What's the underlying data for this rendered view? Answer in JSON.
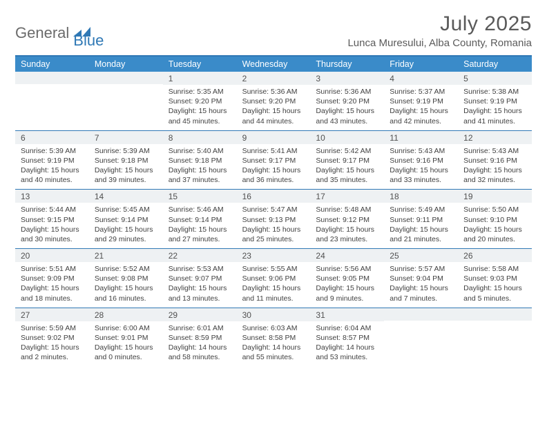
{
  "brand": {
    "general": "General",
    "blue": "Blue"
  },
  "title": "July 2025",
  "location": "Lunca Muresului, Alba County, Romania",
  "colors": {
    "header_bg": "#3a8bc9",
    "border": "#2f78b5",
    "daynum_bg": "#eef1f3",
    "text": "#404040"
  },
  "day_names": [
    "Sunday",
    "Monday",
    "Tuesday",
    "Wednesday",
    "Thursday",
    "Friday",
    "Saturday"
  ],
  "weeks": [
    [
      {
        "n": "",
        "sr": "",
        "ss": "",
        "dl": ""
      },
      {
        "n": "",
        "sr": "",
        "ss": "",
        "dl": ""
      },
      {
        "n": "1",
        "sr": "Sunrise: 5:35 AM",
        "ss": "Sunset: 9:20 PM",
        "dl": "Daylight: 15 hours and 45 minutes."
      },
      {
        "n": "2",
        "sr": "Sunrise: 5:36 AM",
        "ss": "Sunset: 9:20 PM",
        "dl": "Daylight: 15 hours and 44 minutes."
      },
      {
        "n": "3",
        "sr": "Sunrise: 5:36 AM",
        "ss": "Sunset: 9:20 PM",
        "dl": "Daylight: 15 hours and 43 minutes."
      },
      {
        "n": "4",
        "sr": "Sunrise: 5:37 AM",
        "ss": "Sunset: 9:19 PM",
        "dl": "Daylight: 15 hours and 42 minutes."
      },
      {
        "n": "5",
        "sr": "Sunrise: 5:38 AM",
        "ss": "Sunset: 9:19 PM",
        "dl": "Daylight: 15 hours and 41 minutes."
      }
    ],
    [
      {
        "n": "6",
        "sr": "Sunrise: 5:39 AM",
        "ss": "Sunset: 9:19 PM",
        "dl": "Daylight: 15 hours and 40 minutes."
      },
      {
        "n": "7",
        "sr": "Sunrise: 5:39 AM",
        "ss": "Sunset: 9:18 PM",
        "dl": "Daylight: 15 hours and 39 minutes."
      },
      {
        "n": "8",
        "sr": "Sunrise: 5:40 AM",
        "ss": "Sunset: 9:18 PM",
        "dl": "Daylight: 15 hours and 37 minutes."
      },
      {
        "n": "9",
        "sr": "Sunrise: 5:41 AM",
        "ss": "Sunset: 9:17 PM",
        "dl": "Daylight: 15 hours and 36 minutes."
      },
      {
        "n": "10",
        "sr": "Sunrise: 5:42 AM",
        "ss": "Sunset: 9:17 PM",
        "dl": "Daylight: 15 hours and 35 minutes."
      },
      {
        "n": "11",
        "sr": "Sunrise: 5:43 AM",
        "ss": "Sunset: 9:16 PM",
        "dl": "Daylight: 15 hours and 33 minutes."
      },
      {
        "n": "12",
        "sr": "Sunrise: 5:43 AM",
        "ss": "Sunset: 9:16 PM",
        "dl": "Daylight: 15 hours and 32 minutes."
      }
    ],
    [
      {
        "n": "13",
        "sr": "Sunrise: 5:44 AM",
        "ss": "Sunset: 9:15 PM",
        "dl": "Daylight: 15 hours and 30 minutes."
      },
      {
        "n": "14",
        "sr": "Sunrise: 5:45 AM",
        "ss": "Sunset: 9:14 PM",
        "dl": "Daylight: 15 hours and 29 minutes."
      },
      {
        "n": "15",
        "sr": "Sunrise: 5:46 AM",
        "ss": "Sunset: 9:14 PM",
        "dl": "Daylight: 15 hours and 27 minutes."
      },
      {
        "n": "16",
        "sr": "Sunrise: 5:47 AM",
        "ss": "Sunset: 9:13 PM",
        "dl": "Daylight: 15 hours and 25 minutes."
      },
      {
        "n": "17",
        "sr": "Sunrise: 5:48 AM",
        "ss": "Sunset: 9:12 PM",
        "dl": "Daylight: 15 hours and 23 minutes."
      },
      {
        "n": "18",
        "sr": "Sunrise: 5:49 AM",
        "ss": "Sunset: 9:11 PM",
        "dl": "Daylight: 15 hours and 21 minutes."
      },
      {
        "n": "19",
        "sr": "Sunrise: 5:50 AM",
        "ss": "Sunset: 9:10 PM",
        "dl": "Daylight: 15 hours and 20 minutes."
      }
    ],
    [
      {
        "n": "20",
        "sr": "Sunrise: 5:51 AM",
        "ss": "Sunset: 9:09 PM",
        "dl": "Daylight: 15 hours and 18 minutes."
      },
      {
        "n": "21",
        "sr": "Sunrise: 5:52 AM",
        "ss": "Sunset: 9:08 PM",
        "dl": "Daylight: 15 hours and 16 minutes."
      },
      {
        "n": "22",
        "sr": "Sunrise: 5:53 AM",
        "ss": "Sunset: 9:07 PM",
        "dl": "Daylight: 15 hours and 13 minutes."
      },
      {
        "n": "23",
        "sr": "Sunrise: 5:55 AM",
        "ss": "Sunset: 9:06 PM",
        "dl": "Daylight: 15 hours and 11 minutes."
      },
      {
        "n": "24",
        "sr": "Sunrise: 5:56 AM",
        "ss": "Sunset: 9:05 PM",
        "dl": "Daylight: 15 hours and 9 minutes."
      },
      {
        "n": "25",
        "sr": "Sunrise: 5:57 AM",
        "ss": "Sunset: 9:04 PM",
        "dl": "Daylight: 15 hours and 7 minutes."
      },
      {
        "n": "26",
        "sr": "Sunrise: 5:58 AM",
        "ss": "Sunset: 9:03 PM",
        "dl": "Daylight: 15 hours and 5 minutes."
      }
    ],
    [
      {
        "n": "27",
        "sr": "Sunrise: 5:59 AM",
        "ss": "Sunset: 9:02 PM",
        "dl": "Daylight: 15 hours and 2 minutes."
      },
      {
        "n": "28",
        "sr": "Sunrise: 6:00 AM",
        "ss": "Sunset: 9:01 PM",
        "dl": "Daylight: 15 hours and 0 minutes."
      },
      {
        "n": "29",
        "sr": "Sunrise: 6:01 AM",
        "ss": "Sunset: 8:59 PM",
        "dl": "Daylight: 14 hours and 58 minutes."
      },
      {
        "n": "30",
        "sr": "Sunrise: 6:03 AM",
        "ss": "Sunset: 8:58 PM",
        "dl": "Daylight: 14 hours and 55 minutes."
      },
      {
        "n": "31",
        "sr": "Sunrise: 6:04 AM",
        "ss": "Sunset: 8:57 PM",
        "dl": "Daylight: 14 hours and 53 minutes."
      },
      {
        "n": "",
        "sr": "",
        "ss": "",
        "dl": ""
      },
      {
        "n": "",
        "sr": "",
        "ss": "",
        "dl": ""
      }
    ]
  ]
}
